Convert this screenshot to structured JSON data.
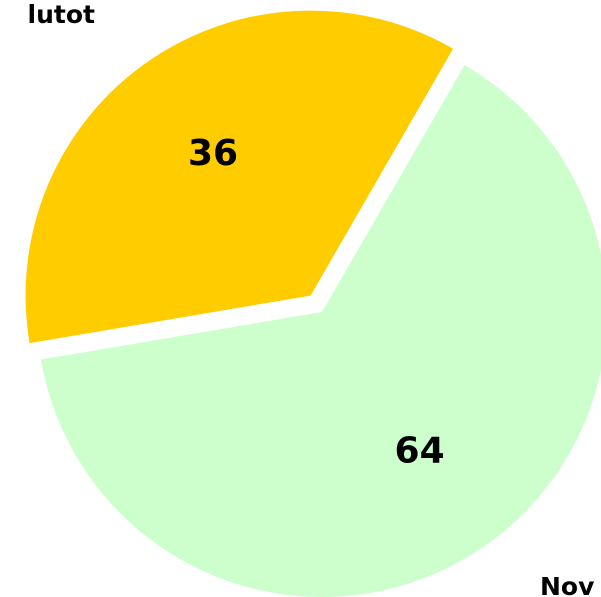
{
  "chart_data": {
    "type": "pie",
    "categories": [
      "lutot",
      "Nov"
    ],
    "values": [
      36,
      64
    ],
    "colors": [
      "#ffcc00",
      "#ccffcc"
    ]
  }
}
